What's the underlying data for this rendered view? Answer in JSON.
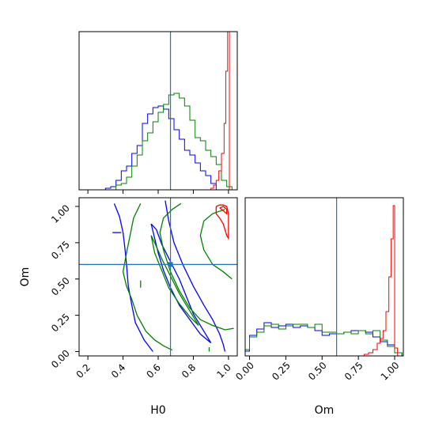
{
  "chart_data": {
    "type": "corner",
    "parameters": [
      "H0",
      "Om"
    ],
    "truths": {
      "H0": 0.67,
      "Om": 0.6
    },
    "truth_color": "#1f77b4",
    "series_colors": [
      "#0000ff",
      "#008000",
      "#ff0000"
    ],
    "panels": [
      {
        "id": "H0-marginal",
        "type": "step-histogram",
        "xlim": [
          0.15,
          1.05
        ],
        "ylim": [
          0,
          1.0
        ],
        "x_ticks": [
          0.2,
          0.4,
          0.6,
          0.8,
          1.0
        ],
        "series": [
          {
            "color": "#0000ff",
            "edges": [
              0.3,
              0.33,
              0.36,
              0.39,
              0.42,
              0.45,
              0.48,
              0.51,
              0.54,
              0.57,
              0.6,
              0.63,
              0.66,
              0.69,
              0.72,
              0.75,
              0.78,
              0.81,
              0.84,
              0.87,
              0.9,
              0.93
            ],
            "values": [
              0.01,
              0.02,
              0.06,
              0.12,
              0.15,
              0.23,
              0.28,
              0.42,
              0.48,
              0.52,
              0.53,
              0.51,
              0.45,
              0.38,
              0.32,
              0.25,
              0.22,
              0.17,
              0.12,
              0.09,
              0.04
            ]
          },
          {
            "color": "#008000",
            "edges": [
              0.36,
              0.39,
              0.42,
              0.45,
              0.48,
              0.51,
              0.54,
              0.57,
              0.6,
              0.63,
              0.66,
              0.69,
              0.72,
              0.75,
              0.78,
              0.81,
              0.84,
              0.87,
              0.9,
              0.93,
              0.96,
              0.99,
              1.02
            ],
            "values": [
              0.03,
              0.04,
              0.08,
              0.15,
              0.22,
              0.31,
              0.36,
              0.43,
              0.49,
              0.54,
              0.6,
              0.61,
              0.58,
              0.53,
              0.44,
              0.33,
              0.31,
              0.25,
              0.21,
              0.16,
              0.06,
              0.02
            ]
          },
          {
            "color": "#ff0000",
            "edges": [
              0.9,
              0.915,
              0.93,
              0.945,
              0.96,
              0.975,
              0.985,
              0.995,
              1.005
            ],
            "values": [
              0.01,
              0.03,
              0.06,
              0.12,
              0.23,
              0.42,
              0.75,
              1.0
            ]
          }
        ]
      },
      {
        "id": "H0-Om-contours",
        "type": "contour",
        "xlim": [
          0.15,
          1.05
        ],
        "ylim": [
          -0.03,
          1.06
        ],
        "x_ticks": [
          0.2,
          0.4,
          0.6,
          0.8,
          1.0
        ],
        "y_ticks": [
          0.0,
          0.25,
          0.5,
          0.75,
          1.0
        ],
        "contours": [
          {
            "color": "#0000ff",
            "points": [
              [
                0.57,
                0.0
              ],
              [
                0.52,
                0.08
              ],
              [
                0.47,
                0.2
              ],
              [
                0.45,
                0.32
              ],
              [
                0.43,
                0.45
              ],
              [
                0.42,
                0.6
              ],
              [
                0.41,
                0.72
              ],
              [
                0.4,
                0.82
              ],
              [
                0.38,
                0.93
              ],
              [
                0.35,
                1.02
              ]
            ]
          },
          {
            "color": "#0000ff",
            "points": [
              [
                0.64,
                1.04
              ],
              [
                0.66,
                0.9
              ],
              [
                0.69,
                0.75
              ],
              [
                0.74,
                0.6
              ],
              [
                0.8,
                0.45
              ],
              [
                0.86,
                0.32
              ],
              [
                0.91,
                0.22
              ],
              [
                0.95,
                0.12
              ],
              [
                0.97,
                0.05
              ],
              [
                0.98,
                0.0
              ]
            ]
          },
          {
            "color": "#0000ff",
            "points": [
              [
                0.56,
                0.88
              ],
              [
                0.58,
                0.78
              ],
              [
                0.6,
                0.68
              ],
              [
                0.63,
                0.56
              ],
              [
                0.67,
                0.44
              ],
              [
                0.72,
                0.32
              ],
              [
                0.78,
                0.22
              ],
              [
                0.84,
                0.12
              ],
              [
                0.9,
                0.06
              ],
              [
                0.86,
                0.14
              ],
              [
                0.8,
                0.26
              ],
              [
                0.76,
                0.38
              ],
              [
                0.72,
                0.5
              ],
              [
                0.67,
                0.62
              ],
              [
                0.62,
                0.74
              ],
              [
                0.59,
                0.84
              ],
              [
                0.56,
                0.88
              ]
            ]
          },
          {
            "color": "#0000ff",
            "points": [
              [
                0.34,
                0.82
              ],
              [
                0.39,
                0.82
              ]
            ]
          },
          {
            "color": "#008000",
            "points": [
              [
                0.5,
                1.02
              ],
              [
                0.46,
                0.92
              ],
              [
                0.44,
                0.8
              ],
              [
                0.42,
                0.68
              ],
              [
                0.4,
                0.55
              ],
              [
                0.42,
                0.45
              ],
              [
                0.45,
                0.36
              ],
              [
                0.48,
                0.25
              ],
              [
                0.53,
                0.14
              ],
              [
                0.58,
                0.08
              ],
              [
                0.63,
                0.04
              ],
              [
                0.68,
                0.01
              ]
            ]
          },
          {
            "color": "#008000",
            "points": [
              [
                0.73,
                1.02
              ],
              [
                0.68,
                0.98
              ],
              [
                0.63,
                0.92
              ],
              [
                0.61,
                0.82
              ],
              [
                0.63,
                0.7
              ],
              [
                0.67,
                0.55
              ],
              [
                0.72,
                0.42
              ],
              [
                0.78,
                0.3
              ],
              [
                0.84,
                0.22
              ],
              [
                0.91,
                0.18
              ],
              [
                0.98,
                0.15
              ],
              [
                1.03,
                0.16
              ]
            ]
          },
          {
            "color": "#008000",
            "points": [
              [
                0.98,
                0.98
              ],
              [
                0.91,
                0.95
              ],
              [
                0.86,
                0.9
              ],
              [
                0.84,
                0.8
              ],
              [
                0.86,
                0.7
              ],
              [
                0.91,
                0.6
              ],
              [
                0.97,
                0.55
              ],
              [
                1.02,
                0.5
              ]
            ]
          },
          {
            "color": "#008000",
            "points": [
              [
                0.56,
                0.8
              ],
              [
                0.58,
                0.68
              ],
              [
                0.62,
                0.56
              ],
              [
                0.66,
                0.44
              ],
              [
                0.72,
                0.33
              ],
              [
                0.78,
                0.24
              ],
              [
                0.83,
                0.18
              ],
              [
                0.78,
                0.28
              ],
              [
                0.72,
                0.4
              ],
              [
                0.67,
                0.52
              ],
              [
                0.62,
                0.64
              ],
              [
                0.58,
                0.75
              ],
              [
                0.56,
                0.8
              ]
            ]
          },
          {
            "color": "#008000",
            "points": [
              [
                0.5,
                0.44
              ],
              [
                0.5,
                0.49
              ]
            ]
          },
          {
            "color": "#008000",
            "points": [
              [
                0.89,
                0.0
              ],
              [
                0.89,
                0.03
              ]
            ]
          },
          {
            "color": "#ff0000",
            "points": [
              [
                0.93,
                1.0
              ],
              [
                0.93,
                0.95
              ],
              [
                0.95,
                0.92
              ],
              [
                0.97,
                0.88
              ],
              [
                0.98,
                0.84
              ],
              [
                0.99,
                0.8
              ],
              [
                1.0,
                0.78
              ],
              [
                1.0,
                0.85
              ],
              [
                1.0,
                0.95
              ],
              [
                0.99,
                1.0
              ],
              [
                0.97,
                1.01
              ],
              [
                0.95,
                1.01
              ],
              [
                0.93,
                1.0
              ]
            ]
          },
          {
            "color": "#ff0000",
            "points": [
              [
                0.95,
                0.99
              ],
              [
                0.97,
                0.97
              ],
              [
                0.99,
                0.95
              ],
              [
                0.99,
                0.98
              ],
              [
                0.97,
                1.0
              ],
              [
                0.95,
                0.99
              ]
            ]
          }
        ]
      },
      {
        "id": "Om-marginal",
        "type": "step-histogram",
        "xlim": [
          -0.03,
          1.06
        ],
        "ylim": [
          0,
          1.0
        ],
        "x_ticks": [
          0.0,
          0.25,
          0.5,
          0.75,
          1.0
        ],
        "series": [
          {
            "color": "#0000ff",
            "edges": [
              -0.03,
              0.0,
              0.05,
              0.1,
              0.15,
              0.2,
              0.25,
              0.3,
              0.35,
              0.4,
              0.45,
              0.5,
              0.55,
              0.6,
              0.65,
              0.7,
              0.75,
              0.8,
              0.85,
              0.9,
              0.95,
              1.0,
              1.05
            ],
            "values": [
              0.03,
              0.13,
              0.17,
              0.21,
              0.18,
              0.19,
              0.2,
              0.18,
              0.19,
              0.18,
              0.16,
              0.13,
              0.14,
              0.14,
              0.15,
              0.16,
              0.16,
              0.15,
              0.12,
              0.09,
              0.07,
              0.02
            ]
          },
          {
            "color": "#008000",
            "edges": [
              -0.03,
              0.0,
              0.05,
              0.1,
              0.15,
              0.2,
              0.25,
              0.3,
              0.35,
              0.4,
              0.45,
              0.5,
              0.55,
              0.6,
              0.65,
              0.7,
              0.75,
              0.8,
              0.85,
              0.9,
              0.95,
              1.0,
              1.05
            ],
            "values": [
              0.04,
              0.12,
              0.15,
              0.19,
              0.2,
              0.17,
              0.19,
              0.2,
              0.2,
              0.18,
              0.2,
              0.15,
              0.15,
              0.14,
              0.15,
              0.14,
              0.16,
              0.14,
              0.16,
              0.1,
              0.06,
              0.02
            ]
          },
          {
            "color": "#ff0000",
            "edges": [
              0.79,
              0.82,
              0.85,
              0.88,
              0.9,
              0.92,
              0.94,
              0.96,
              0.975,
              0.99,
              1.0,
              1.02
            ],
            "values": [
              0.01,
              0.02,
              0.04,
              0.08,
              0.11,
              0.16,
              0.28,
              0.5,
              0.74,
              0.95,
              0.05
            ]
          }
        ]
      }
    ]
  }
}
